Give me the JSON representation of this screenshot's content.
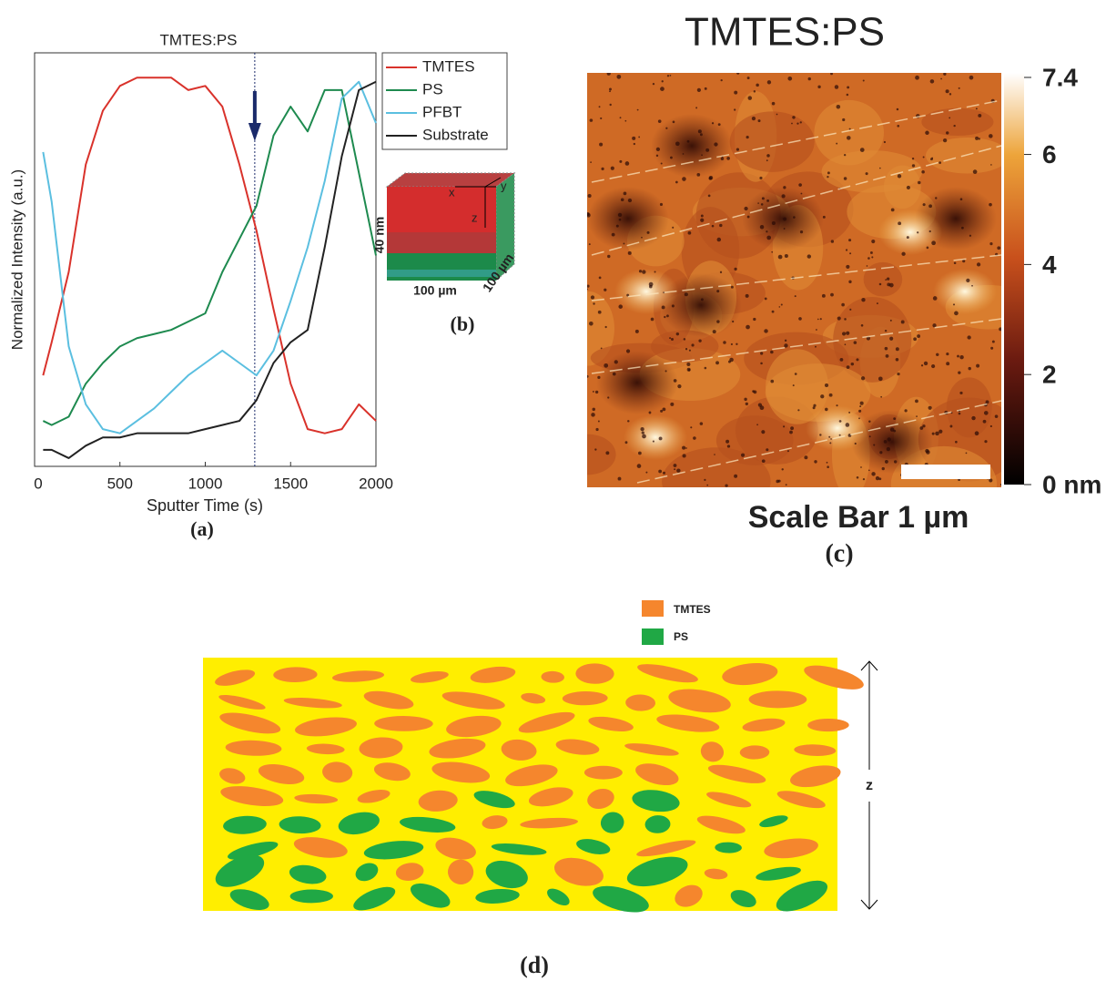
{
  "chart_data": {
    "type": "line",
    "title": "TMTES:PS",
    "x_label": "Sputter Time (s)",
    "y_label": "Normalized Intensity (a.u.)",
    "panel_label": "(a)",
    "x": [
      50,
      100,
      200,
      300,
      400,
      500,
      600,
      700,
      800,
      900,
      1000,
      1100,
      1200,
      1300,
      1400,
      1500,
      1600,
      1700,
      1800,
      1900,
      2000
    ],
    "series": [
      {
        "name": "TMTES",
        "color": "#d9322b",
        "values": [
          0.22,
          0.3,
          0.47,
          0.73,
          0.86,
          0.92,
          0.94,
          0.94,
          0.94,
          0.91,
          0.92,
          0.87,
          0.73,
          0.57,
          0.38,
          0.2,
          0.09,
          0.08,
          0.09,
          0.15,
          0.11
        ]
      },
      {
        "name": "PS",
        "color": "#1e8a4f",
        "values": [
          0.11,
          0.1,
          0.12,
          0.2,
          0.25,
          0.29,
          0.31,
          0.32,
          0.33,
          0.35,
          0.37,
          0.47,
          0.55,
          0.63,
          0.8,
          0.87,
          0.81,
          0.91,
          0.91,
          0.71,
          0.51
        ]
      },
      {
        "name": "PFBT",
        "color": "#5bbfe0",
        "values": [
          0.76,
          0.64,
          0.29,
          0.15,
          0.09,
          0.08,
          0.11,
          0.14,
          0.18,
          0.22,
          0.25,
          0.28,
          0.25,
          0.22,
          0.28,
          0.4,
          0.53,
          0.69,
          0.89,
          0.93,
          0.83
        ]
      },
      {
        "name": "Substrate",
        "color": "#222222",
        "values": [
          0.04,
          0.04,
          0.02,
          0.05,
          0.07,
          0.07,
          0.08,
          0.08,
          0.08,
          0.08,
          0.09,
          0.1,
          0.11,
          0.16,
          0.25,
          0.3,
          0.33,
          0.53,
          0.75,
          0.91,
          0.93
        ]
      }
    ],
    "marker_x": 1290,
    "xlim": [
      0,
      2000
    ],
    "xticks": [
      500,
      1000,
      1500,
      2000
    ],
    "xtick_zero": 0,
    "ylim": [
      0,
      1
    ]
  },
  "panel_b": {
    "axis_x": "x",
    "axis_y": "y",
    "axis_z": "z",
    "depth": "40 nm",
    "width": "100 µm",
    "length": "100 µm",
    "label": "(b)"
  },
  "panel_c": {
    "title": "TMTES:PS",
    "caption": "Scale Bar 1 µm",
    "label": "(c)",
    "colorbar": {
      "lim": [
        0,
        7.4
      ],
      "ticks": [
        {
          "value": 0,
          "label": "0 nm"
        },
        2,
        4,
        6,
        7.4
      ]
    }
  },
  "panel_d": {
    "legend": [
      "TMTES",
      "PS"
    ],
    "axis": "z",
    "label": "(d)"
  }
}
